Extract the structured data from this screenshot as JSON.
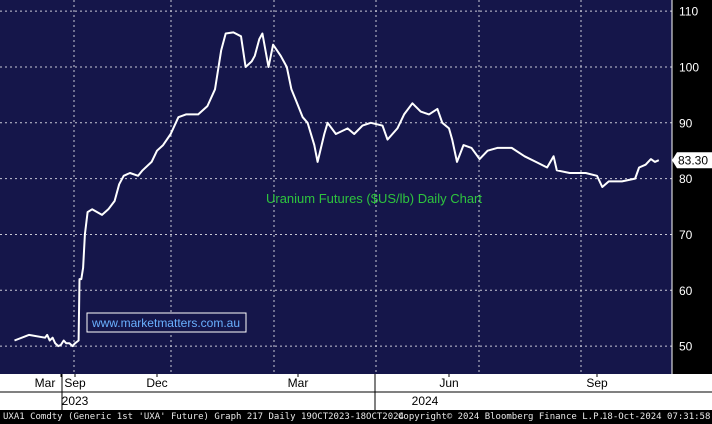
{
  "chart_data": {
    "type": "line",
    "title": "Uranium Futures ($US/lb) Daily Chart",
    "watermark": "www.marketmatters.com.au",
    "last_value_label": "83.30",
    "last_value": 83.3,
    "ylim": [
      45,
      112
    ],
    "y_ticks": [
      50,
      60,
      70,
      80,
      90,
      100,
      110
    ],
    "x_month_ticks": [
      "Mar",
      "Sep",
      "Dec",
      "Mar",
      "Jun",
      "Sep"
    ],
    "x_year_labels": [
      "2023",
      "2024"
    ],
    "grid": true,
    "colors": {
      "plot_bg": "#15164a",
      "line": "#ffffff",
      "grid": "#c9c9d6",
      "title": "#2ec43e",
      "watermark_text": "#6ab0ff",
      "axis_text": "#ffffff",
      "badge_bg": "#ffffff",
      "badge_text": "#000000"
    },
    "series": [
      {
        "points": [
          [
            "2023-03-01",
            51
          ],
          [
            "2023-03-10",
            52
          ],
          [
            "2023-03-20",
            51.5
          ],
          [
            "2023-04-01",
            52
          ],
          [
            "2023-04-15",
            51
          ],
          [
            "2023-05-01",
            51.5
          ],
          [
            "2023-05-15",
            50.5
          ],
          [
            "2023-06-01",
            50
          ],
          [
            "2023-06-15",
            50.2
          ],
          [
            "2023-07-01",
            51
          ],
          [
            "2023-07-15",
            50.5
          ],
          [
            "2023-08-01",
            50.5
          ],
          [
            "2023-08-18",
            50
          ],
          [
            "2023-09-01",
            50.5
          ],
          [
            "2023-09-05",
            51
          ],
          [
            "2023-09-06",
            62
          ],
          [
            "2023-09-08",
            62
          ],
          [
            "2023-09-10",
            64
          ],
          [
            "2023-09-12",
            70
          ],
          [
            "2023-09-15",
            74
          ],
          [
            "2023-09-20",
            74.5
          ],
          [
            "2023-10-01",
            73.5
          ],
          [
            "2023-10-08",
            74.5
          ],
          [
            "2023-10-15",
            76
          ],
          [
            "2023-10-20",
            79
          ],
          [
            "2023-10-25",
            80.5
          ],
          [
            "2023-11-01",
            81
          ],
          [
            "2023-11-10",
            80.5
          ],
          [
            "2023-11-15",
            81.5
          ],
          [
            "2023-11-25",
            83
          ],
          [
            "2023-12-01",
            85
          ],
          [
            "2023-12-05",
            86
          ],
          [
            "2023-12-10",
            88
          ],
          [
            "2023-12-15",
            91
          ],
          [
            "2023-12-20",
            91.5
          ],
          [
            "2023-12-28",
            91.5
          ],
          [
            "2024-01-03",
            93
          ],
          [
            "2024-01-08",
            96
          ],
          [
            "2024-01-12",
            103
          ],
          [
            "2024-01-15",
            106
          ],
          [
            "2024-01-20",
            106.2
          ],
          [
            "2024-01-25",
            105.5
          ],
          [
            "2024-01-28",
            100
          ],
          [
            "2024-02-01",
            101
          ],
          [
            "2024-02-03",
            102
          ],
          [
            "2024-02-06",
            105
          ],
          [
            "2024-02-08",
            106
          ],
          [
            "2024-02-12",
            100
          ],
          [
            "2024-02-15",
            104
          ],
          [
            "2024-02-20",
            102
          ],
          [
            "2024-02-24",
            100
          ],
          [
            "2024-02-27",
            96
          ],
          [
            "2024-03-01",
            94
          ],
          [
            "2024-03-05",
            91
          ],
          [
            "2024-03-08",
            90
          ],
          [
            "2024-03-12",
            86
          ],
          [
            "2024-03-14",
            83
          ],
          [
            "2024-03-18",
            88
          ],
          [
            "2024-03-20",
            90
          ],
          [
            "2024-03-25",
            88
          ],
          [
            "2024-04-01",
            89
          ],
          [
            "2024-04-05",
            88
          ],
          [
            "2024-04-10",
            89.5
          ],
          [
            "2024-04-15",
            90
          ],
          [
            "2024-04-22",
            89.5
          ],
          [
            "2024-04-25",
            87
          ],
          [
            "2024-05-01",
            89
          ],
          [
            "2024-05-05",
            91.5
          ],
          [
            "2024-05-10",
            93.5
          ],
          [
            "2024-05-15",
            92
          ],
          [
            "2024-05-20",
            91.5
          ],
          [
            "2024-05-25",
            92.5
          ],
          [
            "2024-05-28",
            90
          ],
          [
            "2024-06-01",
            89
          ],
          [
            "2024-06-03",
            87
          ],
          [
            "2024-06-06",
            83
          ],
          [
            "2024-06-10",
            86
          ],
          [
            "2024-06-15",
            85.5
          ],
          [
            "2024-06-20",
            83.5
          ],
          [
            "2024-06-25",
            85
          ],
          [
            "2024-07-01",
            85.5
          ],
          [
            "2024-07-10",
            85.5
          ],
          [
            "2024-07-18",
            84
          ],
          [
            "2024-07-25",
            83
          ],
          [
            "2024-08-01",
            82
          ],
          [
            "2024-08-05",
            84
          ],
          [
            "2024-08-07",
            81.5
          ],
          [
            "2024-08-15",
            81
          ],
          [
            "2024-08-25",
            81
          ],
          [
            "2024-09-01",
            80.5
          ],
          [
            "2024-09-05",
            78.5
          ],
          [
            "2024-09-10",
            79.5
          ],
          [
            "2024-09-20",
            79.5
          ],
          [
            "2024-09-30",
            80
          ],
          [
            "2024-10-03",
            82
          ],
          [
            "2024-10-08",
            82.5
          ],
          [
            "2024-10-12",
            83.5
          ],
          [
            "2024-10-15",
            83
          ],
          [
            "2024-10-18",
            83.3
          ]
        ]
      }
    ]
  },
  "footer": {
    "left": "UXA1 Comdty (Generic 1st 'UXA' Future) Graph 217  Daily 19OCT2023-18OCT2024",
    "center": "Copyright© 2024 Bloomberg Finance L.P.",
    "right": "18-Oct-2024 07:31:58"
  }
}
